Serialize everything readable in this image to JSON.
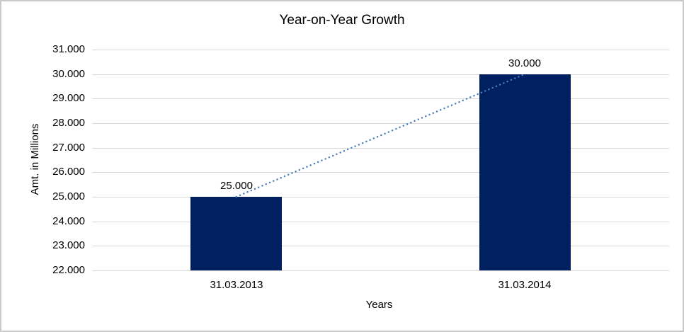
{
  "chart_data": {
    "type": "bar",
    "title": "Year-on-Year Growth",
    "xlabel": "Years",
    "ylabel": "Amt. in Millions",
    "categories": [
      "31.03.2013",
      "31.03.2014"
    ],
    "values": [
      25000,
      30000
    ],
    "data_labels": [
      "25.000",
      "30.000"
    ],
    "ylim": [
      22000,
      31000
    ],
    "ytick_step": 1000,
    "ytick_labels": [
      "22.000",
      "23.000",
      "24.000",
      "25.000",
      "26.000",
      "27.000",
      "28.000",
      "29.000",
      "30.000",
      "31.000"
    ],
    "grid": true,
    "legend": "none",
    "trendline": true,
    "colors": {
      "bar": "#002060",
      "trendline": "#4a7ebd",
      "gridline": "#d9d9d9",
      "axis_line": "#d9d9d9",
      "text": "#000000",
      "frame_border": "#c9c9c9"
    }
  }
}
